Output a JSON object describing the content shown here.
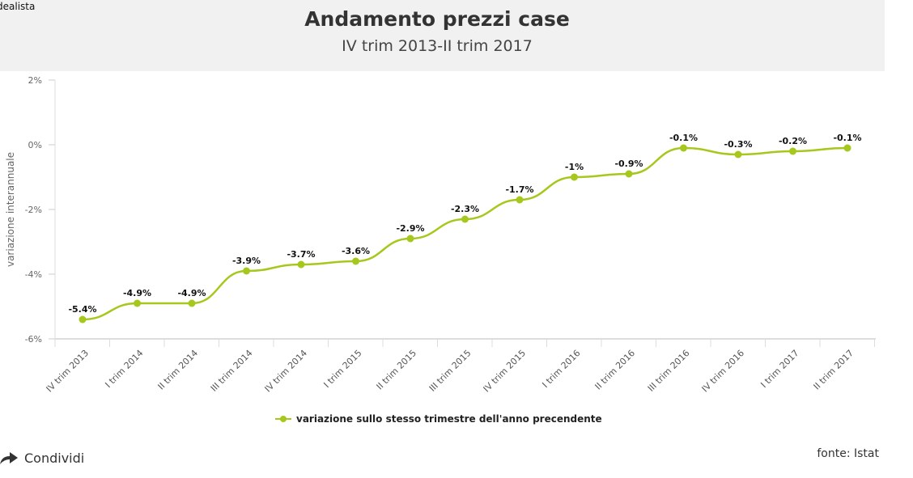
{
  "brand": "dealista",
  "footer": {
    "share_label": "Condividi",
    "source": "fonte: Istat"
  },
  "colors": {
    "series": "#a6c81c",
    "header_bg": "#f1f1f1"
  },
  "chart_data": {
    "type": "line",
    "title": "Andamento prezzi case",
    "subtitle": "IV trim 2013-II trim 2017",
    "ylabel": "variazione interannuale",
    "xlabel": "",
    "ylim": [
      -6,
      2
    ],
    "yticks": [
      "2%",
      "0%",
      "-2%",
      "-4%",
      "-6%"
    ],
    "ytick_values": [
      2,
      0,
      -2,
      -4,
      -6
    ],
    "grid": false,
    "legend": "bottom",
    "categories": [
      "IV trim 2013",
      "I trim 2014",
      "II trim 2014",
      "III trim 2014",
      "IV trim 2014",
      "I trim 2015",
      "II trim 2015",
      "III trim 2015",
      "IV trim 2015",
      "I trim 2016",
      "II trim 2016",
      "III trim 2016",
      "IV trim 2016",
      "I trim 2017",
      "II trim 2017"
    ],
    "series": [
      {
        "name": "variazione sullo stesso trimestre dell'anno precendente",
        "values": [
          -5.4,
          -4.9,
          -4.9,
          -3.9,
          -3.7,
          -3.6,
          -2.9,
          -2.3,
          -1.7,
          -1.0,
          -0.9,
          -0.1,
          -0.3,
          -0.2,
          -0.1
        ],
        "labels": [
          "-5.4%",
          "-4.9%",
          "-4.9%",
          "-3.9%",
          "-3.7%",
          "-3.6%",
          "-2.9%",
          "-2.3%",
          "-1.7%",
          "-1%",
          "-0.9%",
          "-0.1%",
          "-0.3%",
          "-0.2%",
          "-0.1%"
        ]
      }
    ]
  }
}
